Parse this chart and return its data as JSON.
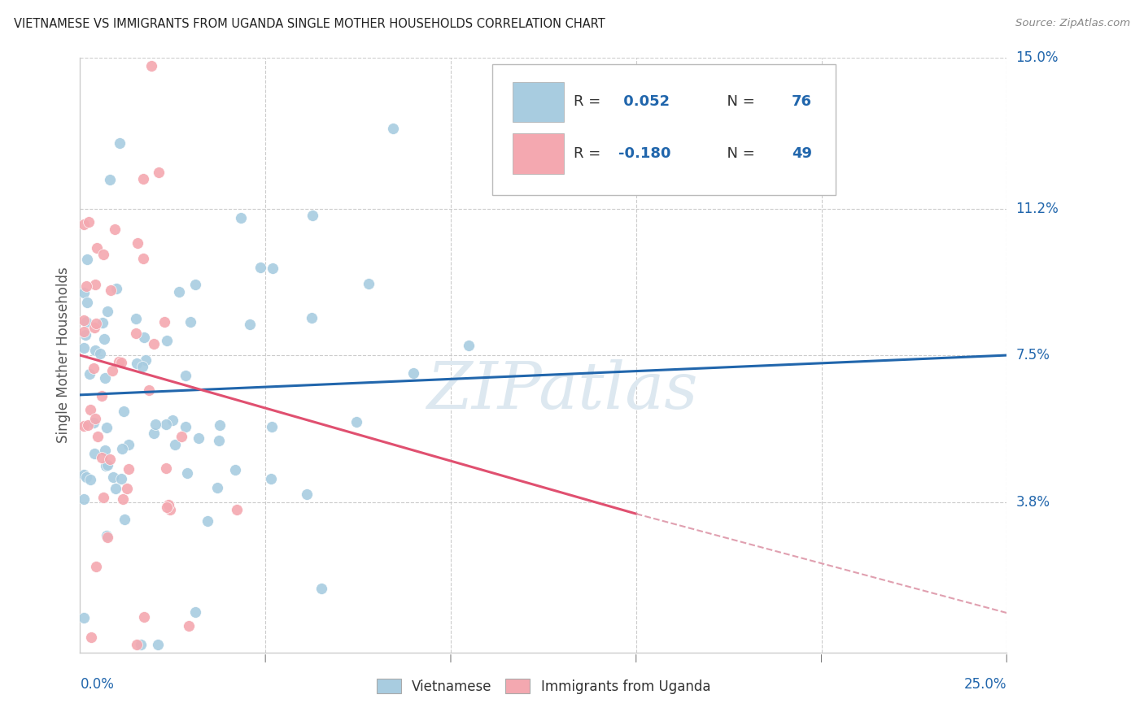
{
  "title": "VIETNAMESE VS IMMIGRANTS FROM UGANDA SINGLE MOTHER HOUSEHOLDS CORRELATION CHART",
  "source": "Source: ZipAtlas.com",
  "ylabel": "Single Mother Households",
  "xlim": [
    0.0,
    0.25
  ],
  "ylim": [
    0.0,
    0.15
  ],
  "ytick_positions": [
    0.038,
    0.075,
    0.112,
    0.15
  ],
  "ytick_labels": [
    "3.8%",
    "7.5%",
    "11.2%",
    "15.0%"
  ],
  "xtick_positions": [
    0.05,
    0.1,
    0.15,
    0.2,
    0.25
  ],
  "R_vietnamese": 0.052,
  "N_vietnamese": 76,
  "R_uganda": -0.18,
  "N_uganda": 49,
  "blue_scatter_color": "#a8cce0",
  "pink_scatter_color": "#f4a8b0",
  "blue_line_color": "#2166ac",
  "pink_line_color": "#e05070",
  "pink_dash_color": "#e0a0b0",
  "watermark_color": "#dde8f0",
  "background_color": "#ffffff",
  "grid_color": "#cccccc",
  "title_color": "#222222",
  "label_color": "#2166ac",
  "ylabel_color": "#555555",
  "legend_text_color": "#333333"
}
